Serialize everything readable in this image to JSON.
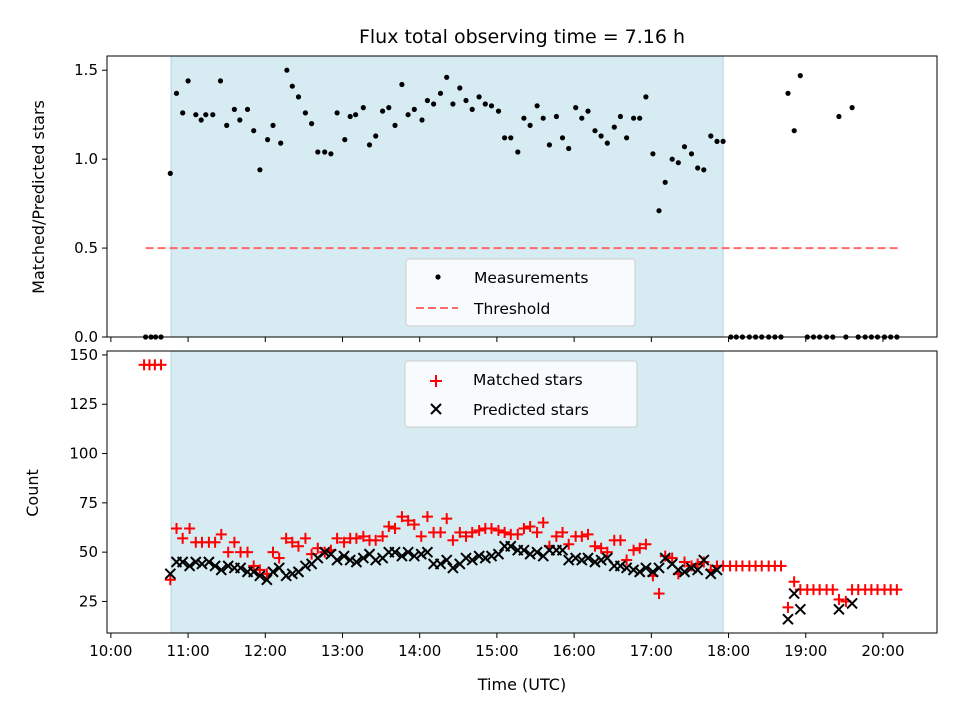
{
  "title": "Flux total observing time = 7.16 h",
  "colors": {
    "band": "#add8e6",
    "measure": "#000000",
    "threshold": "#ff6b6b",
    "matched": "#ff0000",
    "predicted": "#000000"
  },
  "chart_data": [
    {
      "type": "scatter",
      "panel": "top",
      "ylabel": "Matched/Predicted stars",
      "xlim": [
        9.95,
        20.7
      ],
      "ylim": [
        0,
        1.58
      ],
      "yticks": [
        "0.0",
        "0.5",
        "1.0",
        "1.5"
      ],
      "ytick_values": [
        0,
        0.5,
        1.0,
        1.5
      ],
      "shaded_interval": [
        10.78,
        17.93
      ],
      "legend": {
        "position": "lower-center",
        "entries": [
          "Measurements",
          "Threshold"
        ]
      },
      "threshold": {
        "name": "Threshold",
        "value": 0.5,
        "x_range": [
          10.45,
          20.2
        ]
      },
      "series": [
        {
          "name": "Measurements",
          "x": [
            10.45,
            10.52,
            10.58,
            10.65,
            10.77,
            10.85,
            10.93,
            11.0,
            11.1,
            11.17,
            11.23,
            11.32,
            11.42,
            11.5,
            11.6,
            11.67,
            11.77,
            11.85,
            11.93,
            12.03,
            12.1,
            12.2,
            12.28,
            12.35,
            12.43,
            12.52,
            12.6,
            12.68,
            12.77,
            12.85,
            12.93,
            13.03,
            13.1,
            13.17,
            13.27,
            13.35,
            13.43,
            13.52,
            13.6,
            13.68,
            13.77,
            13.85,
            13.93,
            14.03,
            14.1,
            14.18,
            14.27,
            14.35,
            14.43,
            14.52,
            14.6,
            14.68,
            14.77,
            14.85,
            14.93,
            15.02,
            15.1,
            15.18,
            15.27,
            15.35,
            15.43,
            15.52,
            15.6,
            15.68,
            15.77,
            15.85,
            15.93,
            16.02,
            16.1,
            16.18,
            16.27,
            16.35,
            16.43,
            16.52,
            16.6,
            16.68,
            16.77,
            16.85,
            16.93,
            17.02,
            17.1,
            17.18,
            17.27,
            17.35,
            17.43,
            17.52,
            17.6,
            17.68,
            17.77,
            17.85,
            17.93,
            18.03,
            18.1,
            18.18,
            18.27,
            18.35,
            18.43,
            18.52,
            18.6,
            18.68,
            18.77,
            18.85,
            18.93,
            19.02,
            19.1,
            19.18,
            19.27,
            19.35,
            19.43,
            19.52,
            19.6,
            19.68,
            19.77,
            19.85,
            19.93,
            20.02,
            20.1,
            20.18
          ],
          "y": [
            0,
            0,
            0,
            0,
            0.92,
            1.37,
            1.26,
            1.44,
            1.25,
            1.22,
            1.25,
            1.25,
            1.44,
            1.19,
            1.28,
            1.22,
            1.28,
            1.16,
            0.94,
            1.11,
            1.19,
            1.09,
            1.5,
            1.41,
            1.35,
            1.26,
            1.2,
            1.04,
            1.04,
            1.03,
            1.26,
            1.11,
            1.24,
            1.25,
            1.29,
            1.08,
            1.13,
            1.27,
            1.29,
            1.19,
            1.42,
            1.25,
            1.28,
            1.22,
            1.33,
            1.31,
            1.37,
            1.46,
            1.31,
            1.4,
            1.33,
            1.28,
            1.35,
            1.31,
            1.3,
            1.27,
            1.12,
            1.12,
            1.04,
            1.23,
            1.19,
            1.3,
            1.23,
            1.08,
            1.24,
            1.12,
            1.06,
            1.29,
            1.23,
            1.27,
            1.16,
            1.13,
            1.09,
            1.18,
            1.24,
            1.12,
            1.23,
            1.23,
            1.35,
            1.03,
            0.71,
            0.87,
            1.0,
            0.98,
            1.07,
            1.03,
            0.95,
            0.94,
            1.13,
            1.1,
            1.1,
            0,
            0,
            0,
            0,
            0,
            0,
            0,
            0,
            0,
            1.37,
            1.16,
            1.47,
            0,
            0,
            0,
            0,
            0,
            1.24,
            0,
            1.29,
            0,
            0,
            0,
            0,
            0,
            0,
            0
          ]
        }
      ]
    },
    {
      "type": "scatter",
      "panel": "bottom",
      "xlabel": "Time (UTC)",
      "ylabel": "Count",
      "xlim": [
        9.95,
        20.7
      ],
      "ylim": [
        9,
        152
      ],
      "yticks": [
        "25",
        "50",
        "75",
        "100",
        "125",
        "150"
      ],
      "ytick_values": [
        25,
        50,
        75,
        100,
        125,
        150
      ],
      "xticks": [
        "10:00",
        "11:00",
        "12:00",
        "13:00",
        "14:00",
        "15:00",
        "16:00",
        "17:00",
        "18:00",
        "19:00",
        "20:00"
      ],
      "xtick_values": [
        10,
        11,
        12,
        13,
        14,
        15,
        16,
        17,
        18,
        19,
        20
      ],
      "shaded_interval": [
        10.78,
        17.93
      ],
      "legend": {
        "position": "upper-center",
        "entries": [
          "Matched stars",
          "Predicted stars"
        ]
      },
      "series": [
        {
          "name": "Matched stars",
          "marker": "plus",
          "x": [
            10.43,
            10.5,
            10.57,
            10.65,
            10.77,
            10.85,
            10.93,
            11.02,
            11.1,
            11.18,
            11.27,
            11.35,
            11.43,
            11.52,
            11.6,
            11.68,
            11.77,
            11.85,
            11.93,
            12.02,
            12.1,
            12.18,
            12.27,
            12.35,
            12.43,
            12.52,
            12.6,
            12.68,
            12.77,
            12.85,
            12.93,
            13.02,
            13.1,
            13.18,
            13.27,
            13.35,
            13.43,
            13.52,
            13.6,
            13.68,
            13.77,
            13.85,
            13.93,
            14.02,
            14.1,
            14.18,
            14.27,
            14.35,
            14.43,
            14.52,
            14.6,
            14.68,
            14.77,
            14.85,
            14.93,
            15.02,
            15.1,
            15.18,
            15.27,
            15.35,
            15.43,
            15.52,
            15.6,
            15.68,
            15.77,
            15.85,
            15.93,
            16.02,
            16.1,
            16.18,
            16.27,
            16.35,
            16.43,
            16.52,
            16.6,
            16.68,
            16.77,
            16.85,
            16.93,
            17.02,
            17.1,
            17.18,
            17.27,
            17.35,
            17.43,
            17.52,
            17.6,
            17.68,
            17.77,
            17.85,
            17.93,
            18.02,
            18.1,
            18.18,
            18.27,
            18.35,
            18.43,
            18.52,
            18.6,
            18.68,
            18.77,
            18.85,
            18.93,
            19.02,
            19.1,
            19.18,
            19.27,
            19.35,
            19.43,
            19.52,
            19.6,
            19.68,
            19.77,
            19.85,
            19.93,
            20.02,
            20.1,
            20.18
          ],
          "y": [
            145,
            145,
            145,
            145,
            36,
            62,
            57,
            62,
            55,
            55,
            55,
            55,
            59,
            50,
            55,
            50,
            50,
            43,
            41,
            39,
            50,
            47,
            57,
            55,
            53,
            57,
            49,
            52,
            50,
            51,
            57,
            55,
            57,
            57,
            58,
            56,
            56,
            58,
            63,
            62,
            68,
            66,
            64,
            58,
            68,
            60,
            60,
            67,
            56,
            60,
            58,
            60,
            61,
            62,
            62,
            61,
            60,
            59,
            59,
            62,
            63,
            60,
            65,
            53,
            58,
            60,
            54,
            58,
            58,
            59,
            53,
            52,
            50,
            56,
            56,
            46,
            51,
            52,
            54,
            38,
            29,
            48,
            47,
            39,
            45,
            43,
            44,
            45,
            41,
            43,
            43,
            43,
            43,
            43,
            43,
            43,
            43,
            43,
            43,
            43,
            22,
            35,
            31,
            31,
            31,
            31,
            31,
            31,
            26,
            25,
            31,
            31,
            31,
            31,
            31,
            31,
            31,
            31
          ]
        },
        {
          "name": "Predicted stars",
          "marker": "x",
          "x": [
            10.77,
            10.85,
            10.93,
            11.02,
            11.1,
            11.18,
            11.27,
            11.35,
            11.43,
            11.52,
            11.6,
            11.68,
            11.77,
            11.85,
            11.93,
            12.02,
            12.1,
            12.18,
            12.27,
            12.35,
            12.43,
            12.52,
            12.6,
            12.68,
            12.77,
            12.85,
            12.93,
            13.02,
            13.1,
            13.18,
            13.27,
            13.35,
            13.43,
            13.52,
            13.6,
            13.68,
            13.77,
            13.85,
            13.93,
            14.02,
            14.1,
            14.18,
            14.27,
            14.35,
            14.43,
            14.52,
            14.6,
            14.68,
            14.77,
            14.85,
            14.93,
            15.02,
            15.1,
            15.18,
            15.27,
            15.35,
            15.43,
            15.52,
            15.6,
            15.68,
            15.77,
            15.85,
            15.93,
            16.02,
            16.1,
            16.18,
            16.27,
            16.35,
            16.43,
            16.52,
            16.6,
            16.68,
            16.77,
            16.85,
            16.93,
            17.02,
            17.1,
            17.18,
            17.27,
            17.35,
            17.43,
            17.52,
            17.6,
            17.68,
            17.77,
            17.85,
            18.77,
            18.85,
            18.93,
            19.43,
            19.6
          ],
          "y": [
            39,
            45,
            45,
            43,
            45,
            44,
            45,
            43,
            41,
            43,
            42,
            42,
            40,
            40,
            38,
            36,
            40,
            42,
            38,
            39,
            40,
            43,
            44,
            47,
            50,
            49,
            46,
            48,
            46,
            45,
            47,
            49,
            46,
            47,
            50,
            50,
            48,
            50,
            48,
            49,
            50,
            44,
            44,
            46,
            42,
            44,
            47,
            46,
            48,
            47,
            48,
            49,
            53,
            53,
            51,
            51,
            49,
            50,
            48,
            51,
            51,
            51,
            46,
            47,
            46,
            47,
            45,
            46,
            47,
            43,
            43,
            42,
            41,
            40,
            42,
            40,
            42,
            47,
            44,
            41,
            40,
            42,
            41,
            46,
            39,
            41,
            16,
            29,
            21,
            21,
            24
          ]
        }
      ]
    }
  ]
}
